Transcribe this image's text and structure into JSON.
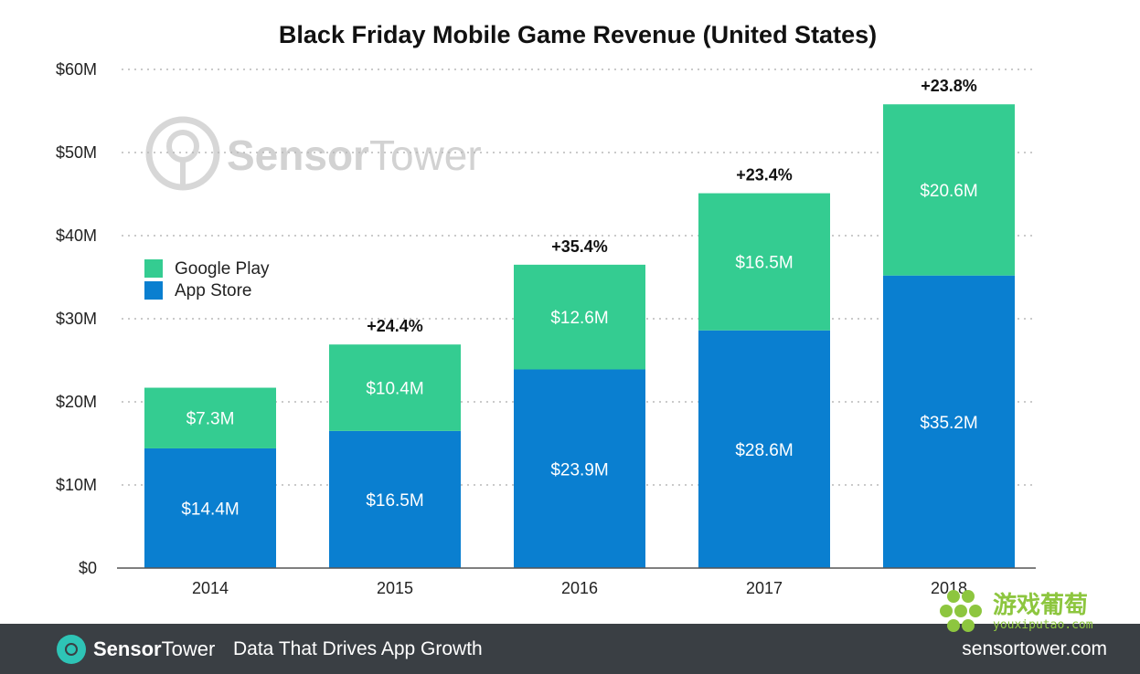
{
  "chart_data": {
    "type": "bar",
    "stacked": true,
    "title": "Black Friday Mobile Game Revenue (United States)",
    "categories": [
      "2014",
      "2015",
      "2016",
      "2017",
      "2018"
    ],
    "series": [
      {
        "name": "App Store",
        "values": [
          14.4,
          16.5,
          23.9,
          28.6,
          35.2
        ],
        "labels": [
          "$14.4M",
          "$16.5M",
          "$23.9M",
          "$28.6M",
          "$35.2M"
        ],
        "color": "#0a7fd0"
      },
      {
        "name": "Google Play",
        "values": [
          7.3,
          10.4,
          12.6,
          16.5,
          20.6
        ],
        "labels": [
          "$7.3M",
          "$10.4M",
          "$12.6M",
          "$16.5M",
          "$20.6M"
        ],
        "color": "#34cc91"
      }
    ],
    "growth_labels": [
      "",
      "+24.4%",
      "+35.4%",
      "+23.4%",
      "+23.8%"
    ],
    "ylim": [
      0,
      60
    ],
    "yticks": [
      0,
      10,
      20,
      30,
      40,
      50,
      60
    ],
    "ytick_labels": [
      "$0",
      "$10M",
      "$20M",
      "$30M",
      "$40M",
      "$50M",
      "$60M"
    ],
    "grid": true,
    "legend_position": "upper-left",
    "legend": [
      "Google Play",
      "App Store"
    ],
    "xlabel": "",
    "ylabel": ""
  },
  "watermark": {
    "left": "Sensor",
    "right": "Tower"
  },
  "footer": {
    "brand_bold": "Sensor",
    "brand_light": "Tower",
    "tagline": "Data That Drives App Growth",
    "url": "sensortower.com"
  },
  "overlay": {
    "cn": "游戏葡萄",
    "en": "youxiputao.com"
  }
}
